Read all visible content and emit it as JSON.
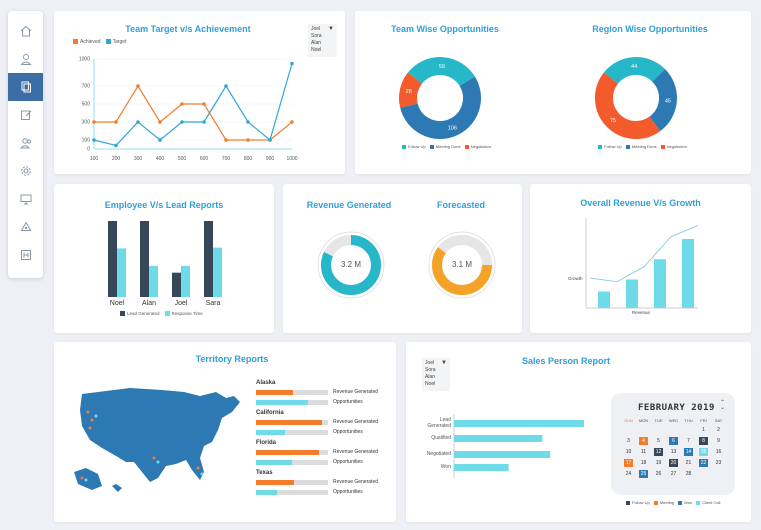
{
  "sidebar": {
    "items": [
      {
        "icon": "home-icon"
      },
      {
        "icon": "user-icon"
      },
      {
        "icon": "copy-icon",
        "active": true
      },
      {
        "icon": "edit-icon"
      },
      {
        "icon": "users-icon"
      },
      {
        "icon": "gear-icon"
      },
      {
        "icon": "monitor-icon"
      },
      {
        "icon": "recycle-icon"
      },
      {
        "icon": "h-square-icon"
      }
    ]
  },
  "team_target": {
    "title": "Team Target v/s Achievement",
    "legend": [
      "Achieved",
      "Target"
    ],
    "dropdown": [
      "Joel",
      "Sora",
      "Alan",
      "Noel"
    ],
    "colors": {
      "achieved": "#f47c2a",
      "target": "#2fa8d5"
    },
    "chart_data": {
      "type": "line",
      "x": [
        100,
        200,
        300,
        400,
        500,
        600,
        700,
        800,
        900,
        1000
      ],
      "ylim": [
        0,
        1000
      ],
      "yticks": [
        0,
        100,
        300,
        500,
        700,
        1000
      ],
      "series": [
        {
          "name": "Achieved",
          "values": [
            300,
            300,
            700,
            300,
            500,
            500,
            100,
            100,
            100,
            300
          ]
        },
        {
          "name": "Target",
          "values": [
            100,
            40,
            300,
            100,
            300,
            300,
            700,
            300,
            100,
            950
          ]
        }
      ]
    }
  },
  "team_wise": {
    "title": "Team Wise Opportunities",
    "chart_data": {
      "type": "pie",
      "slices": [
        {
          "label": "Follow Up",
          "value": 59,
          "color": "#26b8c9"
        },
        {
          "label": "Meeting Done",
          "value": 106,
          "color": "#2d79b4"
        },
        {
          "label": "Negotiation",
          "value": 28,
          "color": "#f35a2c"
        }
      ]
    },
    "legend": [
      "Follow Up",
      "Meeting Done",
      "Negotiation"
    ]
  },
  "region_wise": {
    "title": "Region Wise Opportunities",
    "chart_data": {
      "type": "pie",
      "slices": [
        {
          "label": "Follow Up",
          "value": 44,
          "color": "#26b8c9"
        },
        {
          "label": "Meeting Done",
          "value": 45,
          "color": "#2d79b4"
        },
        {
          "label": "Negotiation",
          "value": 75,
          "color": "#f35a2c"
        }
      ]
    },
    "legend": [
      "Follow Up",
      "Meeting Done",
      "Negotiation"
    ]
  },
  "employee_lead": {
    "title": "Employee V/s Lead Reports",
    "legend": [
      "Lead Generated",
      "Response Time"
    ],
    "colors": {
      "lead": "#36475a",
      "response": "#6fdbe8"
    },
    "chart_data": {
      "type": "bar",
      "categories": [
        "Noel",
        "Alan",
        "Joel",
        "Sara"
      ],
      "ylim": [
        0,
        100
      ],
      "series": [
        {
          "name": "Lead Generated",
          "values": [
            100,
            100,
            32,
            100
          ]
        },
        {
          "name": "Response Time",
          "values": [
            64,
            41,
            41,
            65
          ]
        }
      ]
    }
  },
  "revenue": {
    "title": "Revenue Generated",
    "value_label": "3.2 M",
    "fraction": 0.82,
    "color": "#26b8c9"
  },
  "forecast": {
    "title": "Forecasted",
    "value_label": "3.1 M",
    "fraction": 0.6,
    "color": "#f5a326"
  },
  "overall": {
    "title": "Overall Revenue V/s Growth",
    "ylabel": "Growth",
    "xlabel": "Revenue",
    "chart_data": {
      "type": "bar",
      "bars": [
        22,
        38,
        65,
        92
      ],
      "line": [
        40,
        35,
        55,
        95,
        110
      ],
      "ylim": [
        0,
        120
      ]
    }
  },
  "territory": {
    "title": "Territory Reports",
    "states": [
      {
        "name": "Alaska",
        "revenue": 0.52,
        "opportunities": 0.72
      },
      {
        "name": "California",
        "revenue": 0.92,
        "opportunities": 0.4
      },
      {
        "name": "Florida",
        "revenue": 0.87,
        "opportunities": 0.5
      },
      {
        "name": "Texas",
        "revenue": 0.53,
        "opportunities": 0.29
      }
    ],
    "revenue_label": "Revenue Generated",
    "opportunities_label": "Opportunities",
    "colors": {
      "revenue": "#f47c2a",
      "opportunities": "#6fdbe8",
      "map": "#2d79b4"
    }
  },
  "sales": {
    "title": "Sales Person Report",
    "dropdown": [
      "Joel",
      "Sora",
      "Alan",
      "Noel"
    ],
    "chart_data": {
      "type": "bar",
      "orientation": "horizontal",
      "categories": [
        "Lead Generated",
        "Qualified",
        "Negotiated",
        "Won"
      ],
      "values": [
        100,
        68,
        74,
        42
      ],
      "xlim": [
        0,
        100
      ]
    },
    "calendar": {
      "title": "FEBRUARY 2019",
      "days_of_week": [
        "SUN",
        "MON",
        "TUE",
        "WED",
        "THU",
        "FRI",
        "SAT"
      ],
      "weeks": [
        [
          "",
          "",
          "",
          "",
          "",
          "1",
          "2"
        ],
        [
          "3",
          "4",
          "5",
          "6",
          "7",
          "8",
          "9"
        ],
        [
          "10",
          "11",
          "12",
          "13",
          "14",
          "15",
          "16"
        ],
        [
          "17",
          "18",
          "19",
          "20",
          "21",
          "22",
          "23"
        ],
        [
          "24",
          "25",
          "26",
          "27",
          "28",
          "",
          ""
        ]
      ],
      "legend": [
        "Follow Up",
        "Meeting",
        "Won",
        "Client Call"
      ],
      "legend_colors": [
        "#36475a",
        "#f47c2a",
        "#2d79b4",
        "#6fdbe8"
      ]
    }
  }
}
